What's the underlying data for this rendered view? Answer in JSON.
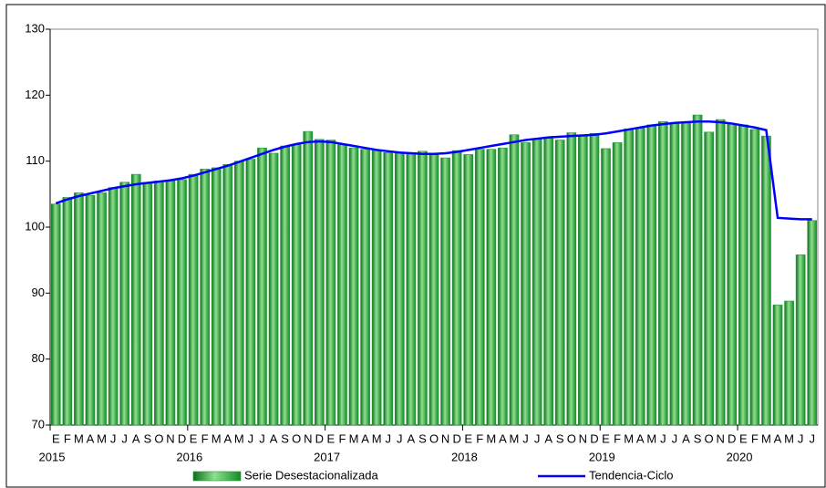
{
  "chart_data": {
    "type": "bar",
    "categories": [
      "E",
      "F",
      "M",
      "A",
      "M",
      "J",
      "J",
      "A",
      "S",
      "O",
      "N",
      "D",
      "E",
      "F",
      "M",
      "A",
      "M",
      "J",
      "J",
      "A",
      "S",
      "O",
      "N",
      "D",
      "E",
      "F",
      "M",
      "A",
      "M",
      "J",
      "J",
      "A",
      "S",
      "O",
      "N",
      "D",
      "E",
      "F",
      "M",
      "A",
      "M",
      "J",
      "J",
      "A",
      "S",
      "O",
      "N",
      "D",
      "E",
      "F",
      "M",
      "A",
      "M",
      "J",
      "J",
      "A",
      "S",
      "O",
      "N",
      "D",
      "E",
      "F",
      "M",
      "A",
      "M",
      "J",
      "J"
    ],
    "years": [
      "2015",
      "2016",
      "2017",
      "2018",
      "2019",
      "2020"
    ],
    "ylim": [
      70,
      130
    ],
    "yticks": [
      70,
      80,
      90,
      100,
      110,
      120,
      130
    ],
    "grid": false,
    "legend": "bottom",
    "series": [
      {
        "name": "Serie Desestacionalizada",
        "type": "bar",
        "color": "#1f9a35",
        "values": [
          103.5,
          104.5,
          105.2,
          104.8,
          105.2,
          106,
          106.8,
          108,
          106.8,
          107,
          107,
          107.2,
          108,
          108.8,
          109,
          109.5,
          110,
          110.3,
          112,
          111.2,
          112.3,
          112.5,
          114.5,
          113.3,
          113.2,
          112.5,
          112,
          111.8,
          111.6,
          111.3,
          111.2,
          111.3,
          111.5,
          111,
          110.5,
          111.6,
          111,
          111.8,
          111.8,
          112,
          114,
          112.8,
          113.3,
          113.5,
          113.2,
          114.3,
          114,
          114.2,
          111.9,
          112.8,
          114.9,
          115,
          115.5,
          116,
          115.8,
          116,
          117,
          114.4,
          116.3,
          115.6,
          115.5,
          114.8,
          113.8,
          88.2,
          88.8,
          95.8,
          101
        ]
      },
      {
        "name": "Tendencia-Ciclo",
        "type": "line",
        "color": "#0000ff",
        "values": [
          103.6,
          104.2,
          104.7,
          105.1,
          105.5,
          105.9,
          106.2,
          106.5,
          106.7,
          106.9,
          107.1,
          107.4,
          107.8,
          108.3,
          108.8,
          109.3,
          109.9,
          110.5,
          111.1,
          111.7,
          112.2,
          112.6,
          112.9,
          113.0,
          112.9,
          112.6,
          112.3,
          112.0,
          111.7,
          111.5,
          111.3,
          111.2,
          111.1,
          111.1,
          111.2,
          111.4,
          111.7,
          112.0,
          112.3,
          112.6,
          112.9,
          113.2,
          113.4,
          113.6,
          113.7,
          113.8,
          113.9,
          114.0,
          114.2,
          114.5,
          114.8,
          115.1,
          115.4,
          115.6,
          115.8,
          115.9,
          116.0,
          116.0,
          115.9,
          115.7,
          115.4,
          115.1,
          114.7,
          101.4,
          101.3,
          101.2,
          101.2
        ]
      }
    ]
  }
}
